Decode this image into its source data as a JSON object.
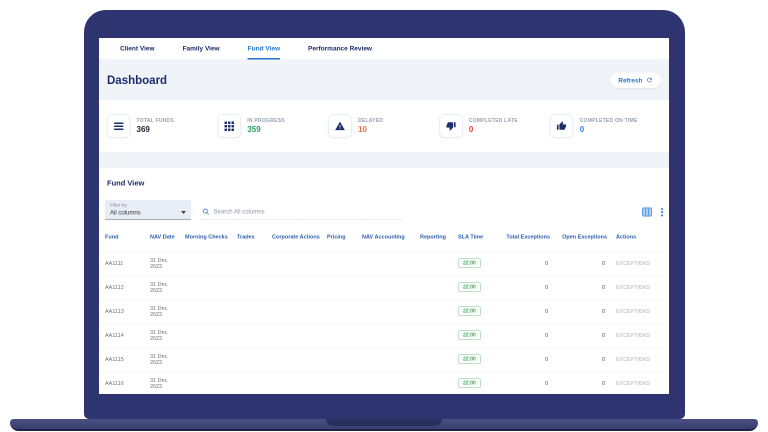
{
  "colors": {
    "laptop_body": "#2d3470",
    "accent_blue": "#2677d2",
    "navy_text": "#1b2d6b",
    "table_header_blue": "#2a5dab",
    "sla_green": "#43a15e"
  },
  "tabs": [
    {
      "label": "Client View",
      "active": false
    },
    {
      "label": "Family View",
      "active": false
    },
    {
      "label": "Fund View",
      "active": true
    },
    {
      "label": "Performance Review",
      "active": false
    }
  ],
  "header": {
    "title": "Dashboard",
    "refresh_label": "Refresh"
  },
  "stats": [
    {
      "icon": "list-icon",
      "label": "TOTAL FUNDS",
      "value": "369",
      "color": "#1f2430"
    },
    {
      "icon": "grid-icon",
      "label": "IN PROGRESS",
      "value": "359",
      "color": "#27a163"
    },
    {
      "icon": "warning-icon",
      "label": "DELAYED",
      "value": "10",
      "color": "#f2703d"
    },
    {
      "icon": "thumbs-down-icon",
      "label": "COMPLETED LATE",
      "value": "0",
      "color": "#e8483f"
    },
    {
      "icon": "thumbs-up-icon",
      "label": "COMPLETED ON TIME",
      "value": "0",
      "color": "#2f80ed"
    }
  ],
  "fund_view": {
    "title": "Fund View",
    "filter": {
      "label": "Filter by",
      "value": "All columns"
    },
    "search": {
      "placeholder": "Search All columns"
    },
    "table": {
      "columns": [
        "Fund",
        "NAV Date",
        "Morning Checks",
        "Trades",
        "Corporate Actions",
        "Pricing",
        "NAV Accounting",
        "Reporting",
        "SLA Time",
        "Total Exceptions",
        "Open Exceptions",
        "Actions"
      ],
      "rows": [
        {
          "fund": "AA1111",
          "nav_date": "31 Dec 2022",
          "morning_checks": "",
          "trades": "",
          "corporate_actions": "",
          "pricing": "",
          "nav_accounting": "",
          "reporting": "",
          "sla_time": "22:00",
          "total_exceptions": "0",
          "open_exceptions": "0",
          "action": "EXCEPTIONS"
        },
        {
          "fund": "AA1112",
          "nav_date": "31 Dec 2022",
          "morning_checks": "",
          "trades": "",
          "corporate_actions": "",
          "pricing": "",
          "nav_accounting": "",
          "reporting": "",
          "sla_time": "22:00",
          "total_exceptions": "0",
          "open_exceptions": "0",
          "action": "EXCEPTIONS"
        },
        {
          "fund": "AA1113",
          "nav_date": "31 Dec 2022",
          "morning_checks": "",
          "trades": "",
          "corporate_actions": "",
          "pricing": "",
          "nav_accounting": "",
          "reporting": "",
          "sla_time": "22:00",
          "total_exceptions": "0",
          "open_exceptions": "0",
          "action": "EXCEPTIONS"
        },
        {
          "fund": "AA1114",
          "nav_date": "31 Dec 2022",
          "morning_checks": "",
          "trades": "",
          "corporate_actions": "",
          "pricing": "",
          "nav_accounting": "",
          "reporting": "",
          "sla_time": "22:00",
          "total_exceptions": "0",
          "open_exceptions": "0",
          "action": "EXCEPTIONS"
        },
        {
          "fund": "AA1115",
          "nav_date": "31 Dec 2022",
          "morning_checks": "",
          "trades": "",
          "corporate_actions": "",
          "pricing": "",
          "nav_accounting": "",
          "reporting": "",
          "sla_time": "22:00",
          "total_exceptions": "0",
          "open_exceptions": "0",
          "action": "EXCEPTIONS"
        },
        {
          "fund": "AA1116",
          "nav_date": "31 Dec 2022",
          "morning_checks": "",
          "trades": "",
          "corporate_actions": "",
          "pricing": "",
          "nav_accounting": "",
          "reporting": "",
          "sla_time": "22:00",
          "total_exceptions": "0",
          "open_exceptions": "0",
          "action": "EXCEPTIONS"
        }
      ]
    }
  }
}
